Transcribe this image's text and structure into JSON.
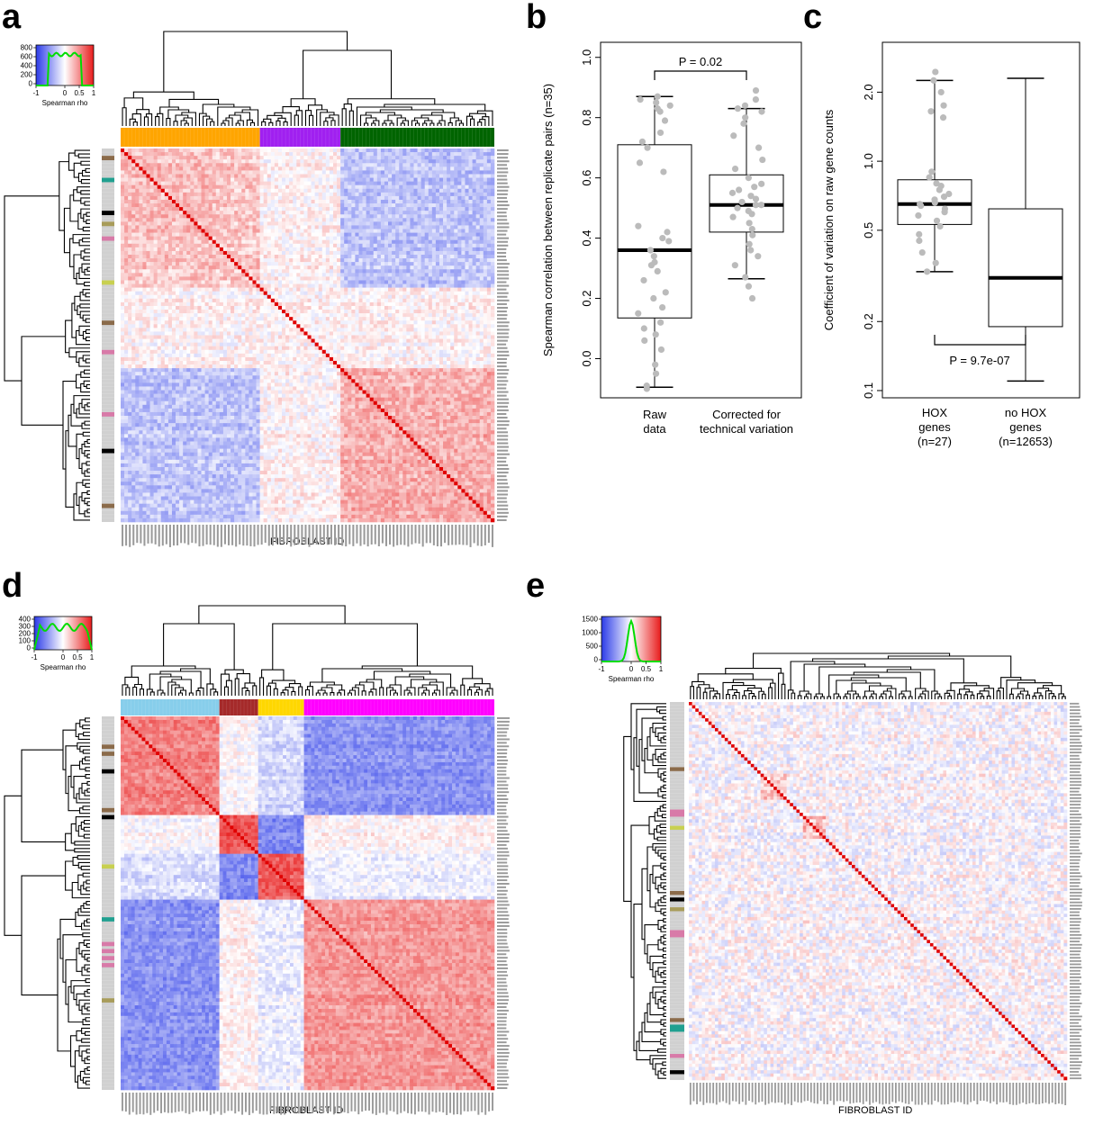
{
  "panels": {
    "a": {
      "letter": "a"
    },
    "b": {
      "letter": "b"
    },
    "c": {
      "letter": "c"
    },
    "d": {
      "letter": "d"
    },
    "e": {
      "letter": "e"
    }
  },
  "heatmap_xlabel": "FIBROBLAST ID",
  "colorkey_label": "Spearman rho",
  "colors": {
    "heat_negative": "#2b3be8",
    "heat_neutral": "#ffffff",
    "heat_positive": "#e81b1b",
    "diagonal": "#e00000",
    "density_line": "#00dd00",
    "points": "#bbbbbb",
    "side_bar_default": "#d0d0d0"
  },
  "chart_data": [
    {
      "panel": "a",
      "type": "heatmap",
      "xlabel": "FIBROBLAST ID",
      "color_key": {
        "xlabel": "Spearman rho",
        "x_ticks": [
          "-1",
          "0",
          "0.5",
          "1"
        ],
        "y_ticks": [
          "800",
          "600",
          "400",
          "200",
          "0"
        ]
      },
      "cluster_bar_colors": [
        "#ffa500",
        "#a020f0",
        "#006400"
      ],
      "cluster_sizes": [
        38,
        22,
        42
      ],
      "side_marks": [
        {
          "row": 2,
          "color": "#8b6b4a"
        },
        {
          "row": 8,
          "color": "#20a090"
        },
        {
          "row": 17,
          "color": "#000000"
        },
        {
          "row": 20,
          "color": "#a89c5a"
        },
        {
          "row": 24,
          "color": "#d87aa8"
        },
        {
          "row": 36,
          "color": "#c8d050"
        },
        {
          "row": 47,
          "color": "#8b6b4a"
        },
        {
          "row": 55,
          "color": "#d87aa8"
        },
        {
          "row": 72,
          "color": "#d87aa8"
        },
        {
          "row": 82,
          "color": "#000000"
        },
        {
          "row": 97,
          "color": "#8b6b4a"
        }
      ]
    },
    {
      "panel": "b",
      "type": "box",
      "ylabel": "Spearman correlation between replicate pairs (n=35)",
      "categories": [
        "Raw\ndata",
        "Corrected for\ntechnical variation"
      ],
      "ylim": [
        -0.1,
        1.0
      ],
      "y_ticks": [
        0.0,
        0.2,
        0.4,
        0.6,
        0.8,
        1.0
      ],
      "annotation": "P = 0.02",
      "boxes": [
        {
          "whisker_low": -0.095,
          "q1": 0.135,
          "median": 0.36,
          "q3": 0.71,
          "whisker_high": 0.87
        },
        {
          "whisker_low": 0.265,
          "q1": 0.42,
          "median": 0.51,
          "q3": 0.61,
          "whisker_high": 0.83
        }
      ],
      "points": [
        [
          -0.1,
          -0.09,
          -0.05,
          -0.02,
          0.03,
          0.06,
          0.08,
          0.1,
          0.12,
          0.15,
          0.17,
          0.2,
          0.22,
          0.26,
          0.29,
          0.31,
          0.32,
          0.34,
          0.36,
          0.39,
          0.4,
          0.42,
          0.44,
          0.62,
          0.65,
          0.7,
          0.72,
          0.75,
          0.79,
          0.82,
          0.83,
          0.84,
          0.85,
          0.86,
          0.87
        ],
        [
          0.2,
          0.24,
          0.27,
          0.31,
          0.34,
          0.36,
          0.38,
          0.41,
          0.43,
          0.45,
          0.47,
          0.48,
          0.49,
          0.5,
          0.51,
          0.51,
          0.52,
          0.53,
          0.54,
          0.55,
          0.56,
          0.57,
          0.58,
          0.6,
          0.63,
          0.66,
          0.7,
          0.74,
          0.78,
          0.8,
          0.82,
          0.83,
          0.84,
          0.86,
          0.89
        ]
      ]
    },
    {
      "panel": "c",
      "type": "box",
      "ylabel": "Coefficient of variation on raw gene counts",
      "categories": [
        "HOX\ngenes\n(n=27)",
        "no HOX\ngenes\n(n=12653)"
      ],
      "ylim": [
        0.1,
        3.0
      ],
      "y_scale": "log",
      "y_ticks": [
        0.1,
        0.2,
        0.5,
        1.0,
        2.0
      ],
      "annotation": "P = 9.7e-07",
      "boxes": [
        {
          "whisker_low": 0.33,
          "q1": 0.53,
          "median": 0.65,
          "q3": 0.83,
          "whisker_high": 2.25
        },
        {
          "whisker_low": 0.11,
          "q1": 0.19,
          "median": 0.31,
          "q3": 0.62,
          "whisker_high": 2.3
        }
      ],
      "points": [
        [
          0.33,
          0.36,
          0.4,
          0.45,
          0.48,
          0.52,
          0.55,
          0.58,
          0.6,
          0.62,
          0.64,
          0.65,
          0.66,
          0.68,
          0.7,
          0.72,
          0.75,
          0.78,
          0.8,
          0.85,
          0.9,
          1.55,
          1.65,
          1.75,
          2.0,
          2.25,
          2.45
        ],
        []
      ]
    },
    {
      "panel": "d",
      "type": "heatmap",
      "xlabel": "FIBROBLAST ID",
      "color_key": {
        "xlabel": "Spearman rho",
        "x_ticks": [
          "-1",
          "0",
          "0.5",
          "1"
        ],
        "y_ticks": [
          "400",
          "300",
          "200",
          "100",
          "0"
        ]
      },
      "cluster_bar_colors": [
        "#87ceeb",
        "#a52a2a",
        "#ffd700",
        "#ff00ff"
      ],
      "cluster_sizes": [
        28,
        11,
        13,
        54
      ],
      "side_marks": [
        {
          "row": 8,
          "color": "#8b6b4a"
        },
        {
          "row": 10,
          "color": "#8b6b4a"
        },
        {
          "row": 15,
          "color": "#000000"
        },
        {
          "row": 26,
          "color": "#8b6b4a"
        },
        {
          "row": 28,
          "color": "#000000"
        },
        {
          "row": 42,
          "color": "#c8d050"
        },
        {
          "row": 57,
          "color": "#20a090"
        },
        {
          "row": 64,
          "color": "#d87aa8"
        },
        {
          "row": 66,
          "color": "#d87aa8"
        },
        {
          "row": 68,
          "color": "#d87aa8"
        },
        {
          "row": 70,
          "color": "#d87aa8"
        },
        {
          "row": 80,
          "color": "#a89c5a"
        }
      ]
    },
    {
      "panel": "e",
      "type": "heatmap",
      "xlabel": "FIBROBLAST ID",
      "color_key": {
        "xlabel": "Spearman rho",
        "x_ticks": [
          "-1",
          "0",
          "0.5",
          "1"
        ],
        "y_ticks": [
          "1500",
          "1000",
          "500",
          "0"
        ]
      },
      "cluster_bar_colors": [],
      "cluster_sizes": [],
      "side_marks": [
        {
          "row": 20,
          "color": "#8b6b4a"
        },
        {
          "row": 33,
          "color": "#d87aa8"
        },
        {
          "row": 34,
          "color": "#d87aa8"
        },
        {
          "row": 38,
          "color": "#c8d050"
        },
        {
          "row": 58,
          "color": "#8b6b4a"
        },
        {
          "row": 60,
          "color": "#000000"
        },
        {
          "row": 63,
          "color": "#a89c5a"
        },
        {
          "row": 70,
          "color": "#d87aa8"
        },
        {
          "row": 71,
          "color": "#d87aa8"
        },
        {
          "row": 97,
          "color": "#8b6b4a"
        },
        {
          "row": 99,
          "color": "#20a090"
        },
        {
          "row": 100,
          "color": "#20a090"
        },
        {
          "row": 108,
          "color": "#d87aa8"
        },
        {
          "row": 113,
          "color": "#000000"
        }
      ]
    }
  ]
}
